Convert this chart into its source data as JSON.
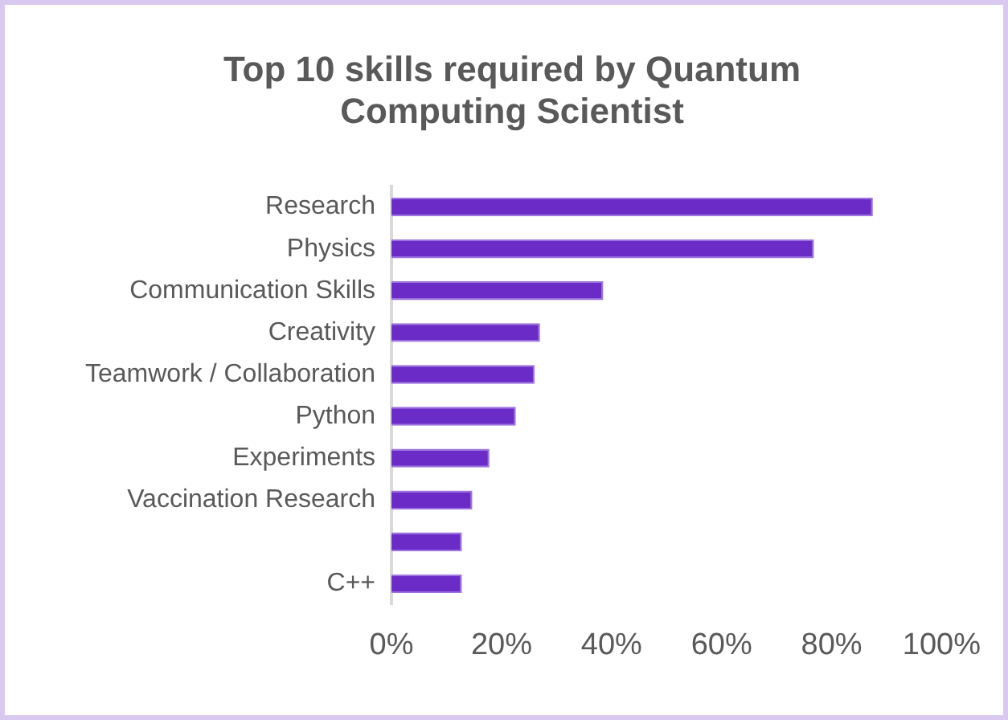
{
  "chart_data": {
    "type": "bar",
    "orientation": "horizontal",
    "title": "Top 10 skills required by Quantum Computing Scientist",
    "categories": [
      "Research",
      "Physics",
      "Communication Skills",
      "Creativity",
      "Teamwork / Collaboration",
      "Python",
      "Experiments",
      "Vaccination Research",
      null,
      "C++"
    ],
    "values": [
      87.5,
      76.8,
      38.5,
      27,
      26,
      22.6,
      17.8,
      14.7,
      12.8,
      12.8
    ],
    "color": "#6a2bc7",
    "xlim": [
      0,
      100
    ],
    "xticks": [
      {
        "value": 0,
        "label": "0%"
      },
      {
        "value": 20,
        "label": "20%"
      },
      {
        "value": 40,
        "label": "40%"
      },
      {
        "value": 60,
        "label": "60%"
      },
      {
        "value": 80,
        "label": "80%"
      },
      {
        "value": 100,
        "label": "100%"
      }
    ],
    "grid": false,
    "legend": false
  }
}
